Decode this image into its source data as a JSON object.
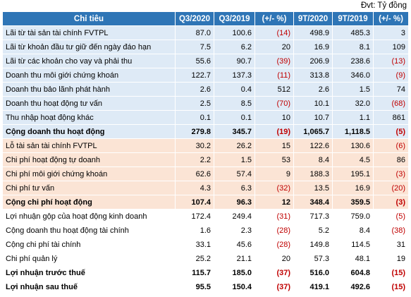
{
  "unit_label": "Đvt: Tỷ đồng",
  "headers": [
    "Chỉ tiêu",
    "Q3/2020",
    "Q3/2019",
    "(+/- %)",
    "9T/2020",
    "9T/2019",
    "(+/- %)"
  ],
  "rows": [
    {
      "label": "Lãi từ tài sản tài chính FVTPL",
      "q3_2020": "87.0",
      "q3_2019": "100.6",
      "q_change": "(14)",
      "ytd_2020": "498.9",
      "ytd_2019": "485.3",
      "ytd_change": "3"
    },
    {
      "label": "Lãi từ khoản đầu tư giữ đến ngày đáo hạn",
      "q3_2020": "7.5",
      "q3_2019": "6.2",
      "q_change": "20",
      "ytd_2020": "16.9",
      "ytd_2019": "8.1",
      "ytd_change": "109"
    },
    {
      "label": "Lãi từ các khoản cho vay và phải thu",
      "q3_2020": "55.6",
      "q3_2019": "90.7",
      "q_change": "(39)",
      "ytd_2020": "206.9",
      "ytd_2019": "238.6",
      "ytd_change": "(13)"
    },
    {
      "label": "Doanh thu môi giới chứng khoán",
      "q3_2020": "122.7",
      "q3_2019": "137.3",
      "q_change": "(11)",
      "ytd_2020": "313.8",
      "ytd_2019": "346.0",
      "ytd_change": "(9)"
    },
    {
      "label": "Doanh thu bảo lãnh phát hành",
      "q3_2020": "2.6",
      "q3_2019": "0.4",
      "q_change": "512",
      "ytd_2020": "2.6",
      "ytd_2019": "1.5",
      "ytd_change": "74"
    },
    {
      "label": "Doanh thu hoạt động tư vấn",
      "q3_2020": "2.5",
      "q3_2019": "8.5",
      "q_change": "(70)",
      "ytd_2020": "10.1",
      "ytd_2019": "32.0",
      "ytd_change": "(68)"
    },
    {
      "label": "Thu nhập hoạt động khác",
      "q3_2020": "0.1",
      "q3_2019": "0.1",
      "q_change": "10",
      "ytd_2020": "10.7",
      "ytd_2019": "1.1",
      "ytd_change": "861"
    },
    {
      "label": "Cộng doanh thu hoạt động",
      "q3_2020": "279.8",
      "q3_2019": "345.7",
      "q_change": "(19)",
      "ytd_2020": "1,065.7",
      "ytd_2019": "1,118.5",
      "ytd_change": "(5)"
    },
    {
      "label": "Lỗ tài sản tài chính FVTPL",
      "q3_2020": "30.2",
      "q3_2019": "26.2",
      "q_change": "15",
      "ytd_2020": "122.6",
      "ytd_2019": "130.6",
      "ytd_change": "(6)"
    },
    {
      "label": "Chi phí hoạt động tự doanh",
      "q3_2020": "2.2",
      "q3_2019": "1.5",
      "q_change": "53",
      "ytd_2020": "8.4",
      "ytd_2019": "4.5",
      "ytd_change": "86"
    },
    {
      "label": "Chi phí môi giới chứng khoán",
      "q3_2020": "62.6",
      "q3_2019": "57.4",
      "q_change": "9",
      "ytd_2020": "188.3",
      "ytd_2019": "195.1",
      "ytd_change": "(3)"
    },
    {
      "label": "Chi phí tư vấn",
      "q3_2020": "4.3",
      "q3_2019": "6.3",
      "q_change": "(32)",
      "ytd_2020": "13.5",
      "ytd_2019": "16.9",
      "ytd_change": "(20)"
    },
    {
      "label": "Cộng chi phí hoạt động",
      "q3_2020": "107.4",
      "q3_2019": "96.3",
      "q_change": "12",
      "ytd_2020": "348.4",
      "ytd_2019": "359.5",
      "ytd_change": "(3)"
    },
    {
      "label": "Lợi nhuận gộp của hoạt động kinh doanh",
      "q3_2020": "172.4",
      "q3_2019": "249.4",
      "q_change": "(31)",
      "ytd_2020": "717.3",
      "ytd_2019": "759.0",
      "ytd_change": "(5)"
    },
    {
      "label": "Cộng doanh thu hoạt động tài chính",
      "q3_2020": "1.6",
      "q3_2019": "2.3",
      "q_change": "(28)",
      "ytd_2020": "5.2",
      "ytd_2019": "8.4",
      "ytd_change": "(38)"
    },
    {
      "label": "Cộng chi phí tài chính",
      "q3_2020": "33.1",
      "q3_2019": "45.6",
      "q_change": "(28)",
      "ytd_2020": "149.8",
      "ytd_2019": "114.5",
      "ytd_change": "31"
    },
    {
      "label": "Chi phí quản lý",
      "q3_2020": "25.2",
      "q3_2019": "21.1",
      "q_change": "20",
      "ytd_2020": "57.3",
      "ytd_2019": "48.1",
      "ytd_change": "19"
    },
    {
      "label": "Lợi nhuận trước thuế",
      "q3_2020": "115.7",
      "q3_2019": "185.0",
      "q_change": "(37)",
      "ytd_2020": "516.0",
      "ytd_2019": "604.8",
      "ytd_change": "(15)"
    },
    {
      "label": "Lợi nhuận sau thuế",
      "q3_2020": "95.5",
      "q3_2019": "150.4",
      "q_change": "(37)",
      "ytd_2020": "419.1",
      "ytd_2019": "492.6",
      "ytd_change": "(15)"
    }
  ],
  "colors": {
    "header_bg": "#2e75b6",
    "revenue_bg": "#deeaf6",
    "expense_bg": "#fbe4d5",
    "other_bg": "#ffffff",
    "negative_text": "#c00000"
  }
}
